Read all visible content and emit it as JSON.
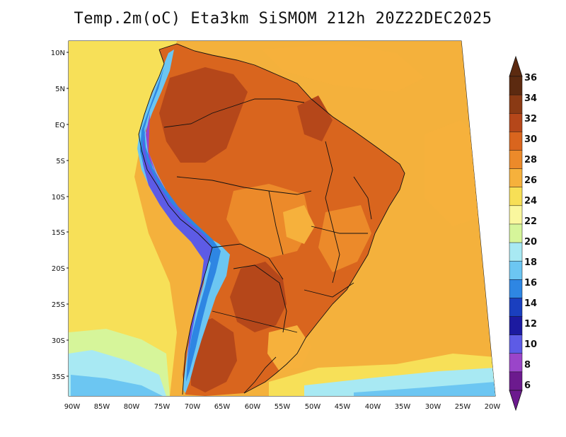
{
  "title": "Temp.2m(oC) Eta3km SiSMOM 212h 20Z22DEC2025",
  "map": {
    "region": "South America",
    "variable": "2 m air temperature",
    "units": "oC",
    "lat_ticks": [
      "10N",
      "5N",
      "EQ",
      "5S",
      "10S",
      "15S",
      "20S",
      "25S",
      "30S",
      "35S"
    ],
    "lon_ticks": [
      "90W",
      "85W",
      "80W",
      "75W",
      "70W",
      "65W",
      "60W",
      "55W",
      "50W",
      "45W",
      "40W",
      "35W",
      "30W",
      "25W",
      "20W"
    ]
  },
  "colorbar": {
    "labels": [
      "36",
      "34",
      "32",
      "30",
      "28",
      "26",
      "24",
      "22",
      "20",
      "18",
      "16",
      "14",
      "12",
      "10",
      "8",
      "6"
    ],
    "colors": [
      "#5c2a10",
      "#8a3a14",
      "#b5471a",
      "#d9651e",
      "#ec8a2a",
      "#f6b13c",
      "#f7df56",
      "#faf79e",
      "#d6f59a",
      "#a8e9f3",
      "#6cc6f2",
      "#2e86e3",
      "#1a3fbf",
      "#1c1aa0",
      "#5d5be6",
      "#9a45c9",
      "#6c1a8e"
    ],
    "top_triangle_color": "#5c2a10",
    "bottom_triangle_color": "#6c1a8e"
  }
}
